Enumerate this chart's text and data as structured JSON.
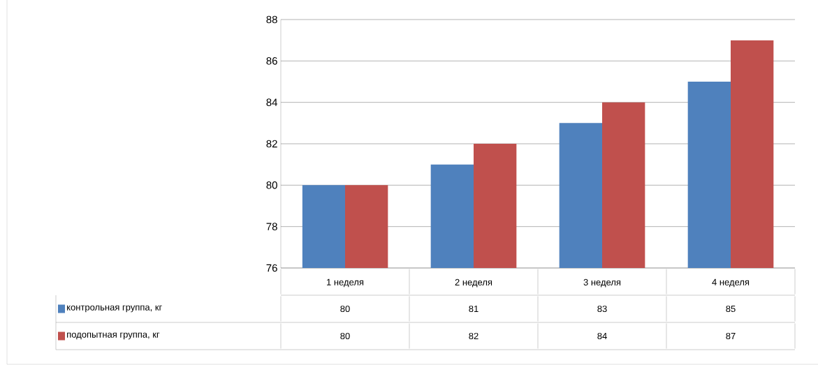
{
  "chart_data": {
    "type": "bar",
    "categories": [
      "1 неделя",
      "2 неделя",
      "3 неделя",
      "4 неделя"
    ],
    "series": [
      {
        "name": "контрольная группа, кг",
        "color": "#4f81bd",
        "values": [
          80,
          81,
          83,
          85
        ]
      },
      {
        "name": "подопытная группа, кг",
        "color": "#c0504d",
        "values": [
          80,
          82,
          84,
          87
        ]
      }
    ],
    "ylim": [
      76,
      88
    ],
    "yticks": [
      76,
      78,
      80,
      82,
      84,
      86,
      88
    ],
    "grid": "y",
    "legend": "bottom left",
    "data_labels": true
  }
}
